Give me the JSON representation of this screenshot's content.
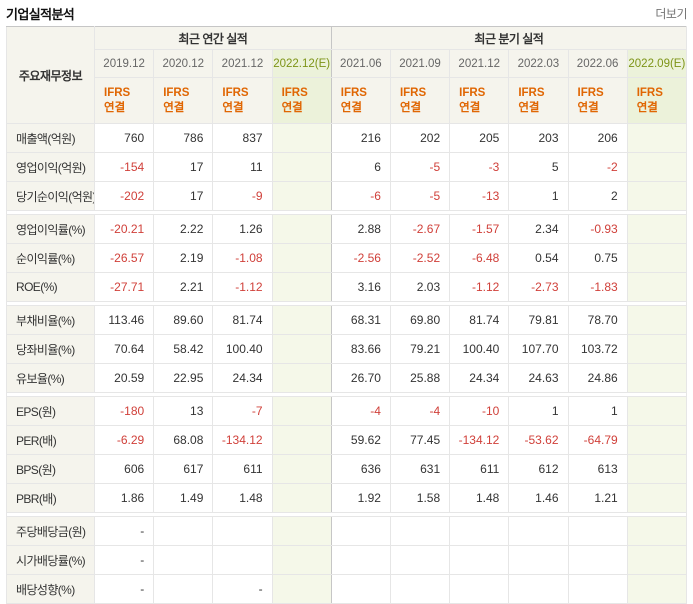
{
  "page": {
    "title": "기업실적분석",
    "more_label": "더보기"
  },
  "colors": {
    "header_bg": "#f5f4ed",
    "estimate_header_bg": "#ecf2da",
    "estimate_cell_bg": "#f5f8e9",
    "estimate_date_text": "#7d9417",
    "ifrs_text": "#e06603",
    "negative_text": "#d0403a",
    "border_light": "#e6e6e6",
    "border_dark": "#c6c6c6"
  },
  "table": {
    "corner_label": "주요재무정보",
    "sections": [
      {
        "label": "최근 연간 실적",
        "colspan": 4
      },
      {
        "label": "최근 분기 실적",
        "colspan": 6
      }
    ],
    "columns": [
      {
        "period": "2019.12",
        "standard": "IFRS",
        "scope": "연결",
        "estimate": false
      },
      {
        "period": "2020.12",
        "standard": "IFRS",
        "scope": "연결",
        "estimate": false
      },
      {
        "period": "2021.12",
        "standard": "IFRS",
        "scope": "연결",
        "estimate": false
      },
      {
        "period": "2022.12(E)",
        "standard": "IFRS",
        "scope": "연결",
        "estimate": true
      },
      {
        "period": "2021.06",
        "standard": "IFRS",
        "scope": "연결",
        "estimate": false
      },
      {
        "period": "2021.09",
        "standard": "IFRS",
        "scope": "연결",
        "estimate": false
      },
      {
        "period": "2021.12",
        "standard": "IFRS",
        "scope": "연결",
        "estimate": false
      },
      {
        "period": "2022.03",
        "standard": "IFRS",
        "scope": "연결",
        "estimate": false
      },
      {
        "period": "2022.06",
        "standard": "IFRS",
        "scope": "연결",
        "estimate": false
      },
      {
        "period": "2022.09(E)",
        "standard": "IFRS",
        "scope": "연결",
        "estimate": true
      }
    ],
    "row_groups": [
      {
        "rows": [
          {
            "label": "매출액(억원)",
            "values": [
              "760",
              "786",
              "837",
              "",
              "216",
              "202",
              "205",
              "203",
              "206",
              ""
            ]
          },
          {
            "label": "영업이익(억원)",
            "values": [
              "-154",
              "17",
              "11",
              "",
              "6",
              "-5",
              "-3",
              "5",
              "-2",
              ""
            ]
          },
          {
            "label": "당기순이익(억원)",
            "values": [
              "-202",
              "17",
              "-9",
              "",
              "-6",
              "-5",
              "-13",
              "1",
              "2",
              ""
            ]
          }
        ]
      },
      {
        "rows": [
          {
            "label": "영업이익률(%)",
            "values": [
              "-20.21",
              "2.22",
              "1.26",
              "",
              "2.88",
              "-2.67",
              "-1.57",
              "2.34",
              "-0.93",
              ""
            ]
          },
          {
            "label": "순이익률(%)",
            "values": [
              "-26.57",
              "2.19",
              "-1.08",
              "",
              "-2.56",
              "-2.52",
              "-6.48",
              "0.54",
              "0.75",
              ""
            ]
          },
          {
            "label": "ROE(%)",
            "values": [
              "-27.71",
              "2.21",
              "-1.12",
              "",
              "3.16",
              "2.03",
              "-1.12",
              "-2.73",
              "-1.83",
              ""
            ]
          }
        ]
      },
      {
        "rows": [
          {
            "label": "부채비율(%)",
            "values": [
              "113.46",
              "89.60",
              "81.74",
              "",
              "68.31",
              "69.80",
              "81.74",
              "79.81",
              "78.70",
              ""
            ]
          },
          {
            "label": "당좌비율(%)",
            "values": [
              "70.64",
              "58.42",
              "100.40",
              "",
              "83.66",
              "79.21",
              "100.40",
              "107.70",
              "103.72",
              ""
            ]
          },
          {
            "label": "유보율(%)",
            "values": [
              "20.59",
              "22.95",
              "24.34",
              "",
              "26.70",
              "25.88",
              "24.34",
              "24.63",
              "24.86",
              ""
            ]
          }
        ]
      },
      {
        "rows": [
          {
            "label": "EPS(원)",
            "values": [
              "-180",
              "13",
              "-7",
              "",
              "-4",
              "-4",
              "-10",
              "1",
              "1",
              ""
            ]
          },
          {
            "label": "PER(배)",
            "values": [
              "-6.29",
              "68.08",
              "-134.12",
              "",
              "59.62",
              "77.45",
              "-134.12",
              "-53.62",
              "-64.79",
              ""
            ]
          },
          {
            "label": "BPS(원)",
            "values": [
              "606",
              "617",
              "611",
              "",
              "636",
              "631",
              "611",
              "612",
              "613",
              ""
            ]
          },
          {
            "label": "PBR(배)",
            "values": [
              "1.86",
              "1.49",
              "1.48",
              "",
              "1.92",
              "1.58",
              "1.48",
              "1.46",
              "1.21",
              ""
            ]
          }
        ]
      },
      {
        "rows": [
          {
            "label": "주당배당금(원)",
            "values": [
              "-",
              "",
              "",
              "",
              "",
              "",
              "",
              "",
              "",
              ""
            ]
          },
          {
            "label": "시가배당률(%)",
            "values": [
              "-",
              "",
              "",
              "",
              "",
              "",
              "",
              "",
              "",
              ""
            ]
          },
          {
            "label": "배당성향(%)",
            "values": [
              "-",
              "",
              "-",
              "",
              "",
              "",
              "",
              "",
              "",
              ""
            ]
          }
        ]
      }
    ]
  }
}
